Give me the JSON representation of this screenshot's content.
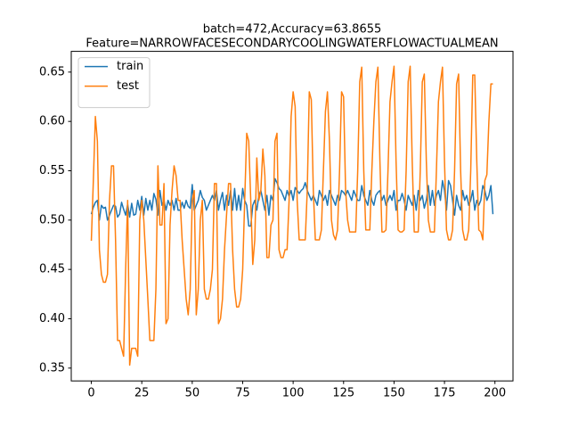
{
  "chart_data": {
    "type": "line",
    "title": "batch=472,Accuracy=63.8655",
    "subtitle": "Feature=NARROWFACESECONDARYCOOLINGWATERFLOWACTUALMEAN",
    "x": [
      0,
      1,
      2,
      3,
      4,
      5,
      6,
      7,
      8,
      9,
      10,
      11,
      12,
      13,
      14,
      15,
      16,
      17,
      18,
      19,
      20,
      21,
      22,
      23,
      24,
      25,
      26,
      27,
      28,
      29,
      30,
      31,
      32,
      33,
      34,
      35,
      36,
      37,
      38,
      39,
      40,
      41,
      42,
      43,
      44,
      45,
      46,
      47,
      48,
      49,
      50,
      51,
      52,
      53,
      54,
      55,
      56,
      57,
      58,
      59,
      60,
      61,
      62,
      63,
      64,
      65,
      66,
      67,
      68,
      69,
      70,
      71,
      72,
      73,
      74,
      75,
      76,
      77,
      78,
      79,
      80,
      81,
      82,
      83,
      84,
      85,
      86,
      87,
      88,
      89,
      90,
      91,
      92,
      93,
      94,
      95,
      96,
      97,
      98,
      99,
      100,
      101,
      102,
      103,
      104,
      105,
      106,
      107,
      108,
      109,
      110,
      111,
      112,
      113,
      114,
      115,
      116,
      117,
      118,
      119,
      120,
      121,
      122,
      123,
      124,
      125,
      126,
      127,
      128,
      129,
      130,
      131,
      132,
      133,
      134,
      135,
      136,
      137,
      138,
      139,
      140,
      141,
      142,
      143,
      144,
      145,
      146,
      147,
      148,
      149,
      150,
      151,
      152,
      153,
      154,
      155,
      156,
      157,
      158,
      159,
      160,
      161,
      162,
      163,
      164,
      165,
      166,
      167,
      168,
      169,
      170,
      171,
      172,
      173,
      174,
      175,
      176,
      177,
      178,
      179,
      180,
      181,
      182,
      183,
      184,
      185,
      186,
      187,
      188,
      189,
      190,
      191,
      192,
      193,
      194,
      195,
      196,
      197,
      198,
      199
    ],
    "series": [
      {
        "name": "train",
        "color": "#1f77b4",
        "values": [
          0.506,
          0.513,
          0.518,
          0.52,
          0.5,
          0.515,
          0.512,
          0.513,
          0.5,
          0.505,
          0.51,
          0.515,
          0.514,
          0.503,
          0.506,
          0.518,
          0.511,
          0.505,
          0.516,
          0.503,
          0.517,
          0.505,
          0.506,
          0.52,
          0.51,
          0.524,
          0.505,
          0.522,
          0.51,
          0.52,
          0.51,
          0.527,
          0.521,
          0.505,
          0.53,
          0.515,
          0.52,
          0.51,
          0.52,
          0.515,
          0.52,
          0.51,
          0.522,
          0.51,
          0.51,
          0.518,
          0.512,
          0.52,
          0.514,
          0.512,
          0.536,
          0.51,
          0.515,
          0.52,
          0.53,
          0.523,
          0.52,
          0.51,
          0.515,
          0.52,
          0.525,
          0.52,
          0.53,
          0.51,
          0.52,
          0.528,
          0.51,
          0.525,
          0.515,
          0.53,
          0.51,
          0.532,
          0.51,
          0.525,
          0.51,
          0.532,
          0.52,
          0.515,
          0.494,
          0.494,
          0.515,
          0.52,
          0.51,
          0.525,
          0.53,
          0.52,
          0.51,
          0.525,
          0.505,
          0.525,
          0.52,
          0.542,
          0.538,
          0.532,
          0.53,
          0.525,
          0.52,
          0.53,
          0.524,
          0.53,
          0.52,
          0.533,
          0.53,
          0.527,
          0.53,
          0.532,
          0.538,
          0.53,
          0.525,
          0.52,
          0.525,
          0.52,
          0.515,
          0.53,
          0.525,
          0.52,
          0.525,
          0.515,
          0.53,
          0.525,
          0.52,
          0.515,
          0.525,
          0.52,
          0.53,
          0.528,
          0.525,
          0.53,
          0.525,
          0.52,
          0.53,
          0.525,
          0.52,
          0.52,
          0.535,
          0.525,
          0.52,
          0.515,
          0.53,
          0.52,
          0.515,
          0.525,
          0.528,
          0.53,
          0.52,
          0.525,
          0.515,
          0.52,
          0.525,
          0.52,
          0.53,
          0.51,
          0.52,
          0.52,
          0.527,
          0.52,
          0.51,
          0.525,
          0.52,
          0.515,
          0.525,
          0.51,
          0.53,
          0.52,
          0.525,
          0.512,
          0.52,
          0.535,
          0.515,
          0.53,
          0.515,
          0.525,
          0.53,
          0.52,
          0.54,
          0.53,
          0.51,
          0.54,
          0.535,
          0.52,
          0.505,
          0.525,
          0.515,
          0.51,
          0.53,
          0.52,
          0.525,
          0.515,
          0.52,
          0.53,
          0.51,
          0.52,
          0.515,
          0.52,
          0.535,
          0.53,
          0.52,
          0.525,
          0.535,
          0.506
        ]
      },
      {
        "name": "test",
        "color": "#ff7f0e",
        "values": [
          0.479,
          0.54,
          0.605,
          0.58,
          0.47,
          0.445,
          0.437,
          0.437,
          0.445,
          0.52,
          0.555,
          0.555,
          0.48,
          0.378,
          0.378,
          0.37,
          0.362,
          0.45,
          0.52,
          0.353,
          0.37,
          0.37,
          0.37,
          0.362,
          0.5,
          0.52,
          0.5,
          0.46,
          0.42,
          0.378,
          0.378,
          0.378,
          0.43,
          0.555,
          0.495,
          0.495,
          0.537,
          0.395,
          0.4,
          0.495,
          0.53,
          0.555,
          0.545,
          0.52,
          0.52,
          0.48,
          0.45,
          0.42,
          0.404,
          0.43,
          0.52,
          0.53,
          0.404,
          0.43,
          0.5,
          0.52,
          0.43,
          0.42,
          0.42,
          0.43,
          0.45,
          0.537,
          0.537,
          0.395,
          0.4,
          0.42,
          0.47,
          0.505,
          0.537,
          0.537,
          0.47,
          0.43,
          0.412,
          0.412,
          0.42,
          0.45,
          0.52,
          0.588,
          0.58,
          0.52,
          0.455,
          0.48,
          0.563,
          0.52,
          0.53,
          0.572,
          0.545,
          0.462,
          0.462,
          0.495,
          0.5,
          0.58,
          0.588,
          0.47,
          0.462,
          0.462,
          0.47,
          0.47,
          0.52,
          0.605,
          0.63,
          0.615,
          0.52,
          0.48,
          0.48,
          0.48,
          0.48,
          0.53,
          0.63,
          0.622,
          0.53,
          0.48,
          0.48,
          0.48,
          0.49,
          0.55,
          0.61,
          0.63,
          0.58,
          0.5,
          0.485,
          0.48,
          0.49,
          0.55,
          0.63,
          0.625,
          0.53,
          0.5,
          0.488,
          0.488,
          0.488,
          0.488,
          0.55,
          0.64,
          0.655,
          0.55,
          0.49,
          0.49,
          0.49,
          0.55,
          0.6,
          0.64,
          0.655,
          0.56,
          0.488,
          0.488,
          0.49,
          0.55,
          0.62,
          0.64,
          0.656,
          0.56,
          0.49,
          0.488,
          0.488,
          0.49,
          0.55,
          0.64,
          0.656,
          0.56,
          0.488,
          0.488,
          0.488,
          0.55,
          0.64,
          0.648,
          0.56,
          0.5,
          0.488,
          0.488,
          0.488,
          0.55,
          0.62,
          0.64,
          0.655,
          0.56,
          0.49,
          0.48,
          0.48,
          0.49,
          0.55,
          0.638,
          0.648,
          0.55,
          0.49,
          0.48,
          0.48,
          0.49,
          0.55,
          0.647,
          0.647,
          0.56,
          0.49,
          0.488,
          0.48,
          0.54,
          0.546,
          0.6,
          0.638,
          0.638
        ]
      }
    ],
    "xlim": [
      -9.95,
      208.95
    ],
    "xticks": [
      0,
      25,
      50,
      75,
      100,
      125,
      150,
      175,
      200
    ],
    "ylim": [
      0.337,
      0.671
    ],
    "yticks": [
      0.35,
      {
        "value": 0.4,
        "label": "0.40"
      },
      0.45,
      {
        "value": 0.5,
        "label": "0.50"
      },
      0.55,
      {
        "value": 0.6,
        "label": "0.60"
      },
      0.65
    ],
    "legend": "upper left",
    "grid": false
  }
}
